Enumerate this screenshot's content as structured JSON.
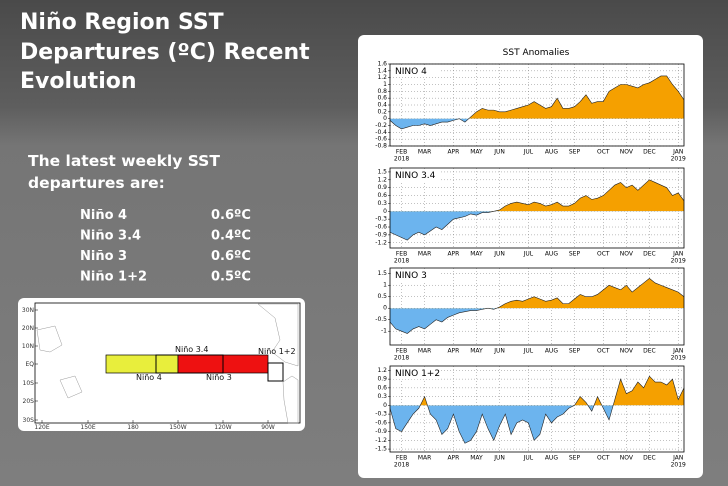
{
  "slide": {
    "title_lines": [
      "Niño Region SST",
      "Departures (ºC) Recent",
      "Evolution"
    ],
    "intro_lines": [
      "The latest weekly SST",
      "departures are:"
    ],
    "rows": [
      [
        "Niño 4",
        "0.6ºC"
      ],
      [
        "Niño 3.4",
        "0.4ºC"
      ],
      [
        "Niño 3",
        "0.6ºC"
      ],
      [
        "Niño 1+2",
        "0.5ºC"
      ]
    ]
  },
  "map": {
    "lat_labels": [
      "30N",
      "20N",
      "10N",
      "EQ",
      "10S",
      "20S",
      "30S"
    ],
    "lon_labels": [
      "120E",
      "150E",
      "180",
      "150W",
      "120W",
      "90W"
    ],
    "regions": [
      "Niño 4",
      "Niño 3.4",
      "Niño 3",
      "Niño 1+2"
    ]
  },
  "anomaly_panel": {
    "title": "SST Anomalies"
  },
  "chart_data": [
    {
      "type": "area",
      "grid": true,
      "positive_color": "#f5a000",
      "negative_color": "#6cb4ee",
      "categories": [
        null,
        null,
        "FEB",
        null,
        null,
        null,
        "MAR",
        null,
        null,
        null,
        null,
        "APR",
        null,
        null,
        null,
        "MAY",
        null,
        null,
        null,
        "JUN",
        null,
        null,
        null,
        null,
        "JUL",
        null,
        null,
        null,
        "AUG",
        null,
        null,
        null,
        "SEP",
        null,
        null,
        null,
        null,
        "OCT",
        null,
        null,
        null,
        "NOV",
        null,
        null,
        null,
        "DEC",
        null,
        null,
        null,
        null,
        "JAN",
        null
      ],
      "category_years": [
        null,
        null,
        "2018",
        null,
        null,
        null,
        null,
        null,
        null,
        null,
        null,
        null,
        null,
        null,
        null,
        null,
        null,
        null,
        null,
        null,
        null,
        null,
        null,
        null,
        null,
        null,
        null,
        null,
        null,
        null,
        null,
        null,
        null,
        null,
        null,
        null,
        null,
        null,
        null,
        null,
        null,
        null,
        null,
        null,
        null,
        null,
        null,
        null,
        null,
        null,
        "2019",
        null
      ],
      "ylim": [
        -0.8,
        1.6
      ],
      "yticks": [
        1.6,
        1.4,
        1.2,
        1,
        0.8,
        0.6,
        0.4,
        0.2,
        0,
        -0.2,
        -0.4,
        -0.6,
        -0.8
      ],
      "series": [
        {
          "name": "NINO 4",
          "values": [
            -0.05,
            -0.2,
            -0.3,
            -0.25,
            -0.2,
            -0.2,
            -0.15,
            -0.2,
            -0.15,
            -0.1,
            -0.1,
            -0.05,
            0.0,
            -0.1,
            0.05,
            0.2,
            0.3,
            0.25,
            0.25,
            0.2,
            0.2,
            0.25,
            0.3,
            0.35,
            0.4,
            0.5,
            0.4,
            0.3,
            0.35,
            0.6,
            0.3,
            0.3,
            0.35,
            0.5,
            0.7,
            0.45,
            0.5,
            0.5,
            0.8,
            0.9,
            1.0,
            1.0,
            0.95,
            0.9,
            1.0,
            1.05,
            1.15,
            1.25,
            1.25,
            1.0,
            0.8,
            0.55
          ]
        }
      ]
    },
    {
      "type": "area",
      "grid": true,
      "positive_color": "#f5a000",
      "negative_color": "#6cb4ee",
      "categories": [
        null,
        null,
        "FEB",
        null,
        null,
        null,
        "MAR",
        null,
        null,
        null,
        null,
        "APR",
        null,
        null,
        null,
        "MAY",
        null,
        null,
        null,
        "JUN",
        null,
        null,
        null,
        null,
        "JUL",
        null,
        null,
        null,
        "AUG",
        null,
        null,
        null,
        "SEP",
        null,
        null,
        null,
        null,
        "OCT",
        null,
        null,
        null,
        "NOV",
        null,
        null,
        null,
        "DEC",
        null,
        null,
        null,
        null,
        "JAN",
        null
      ],
      "category_years": [
        null,
        null,
        "2018",
        null,
        null,
        null,
        null,
        null,
        null,
        null,
        null,
        null,
        null,
        null,
        null,
        null,
        null,
        null,
        null,
        null,
        null,
        null,
        null,
        null,
        null,
        null,
        null,
        null,
        null,
        null,
        null,
        null,
        null,
        null,
        null,
        null,
        null,
        null,
        null,
        null,
        null,
        null,
        null,
        null,
        null,
        null,
        null,
        null,
        null,
        null,
        "2019",
        null
      ],
      "ylim": [
        -1.4,
        1.65
      ],
      "yticks": [
        1.5,
        1.2,
        0.9,
        0.6,
        0.3,
        0,
        -0.3,
        -0.6,
        -0.9,
        -1.2
      ],
      "series": [
        {
          "name": "NINO 3.4",
          "values": [
            -0.8,
            -0.9,
            -1.0,
            -1.1,
            -0.9,
            -0.8,
            -0.9,
            -0.75,
            -0.6,
            -0.7,
            -0.5,
            -0.3,
            -0.25,
            -0.2,
            -0.1,
            -0.15,
            -0.05,
            -0.05,
            0.0,
            0.05,
            0.2,
            0.3,
            0.35,
            0.3,
            0.25,
            0.35,
            0.3,
            0.2,
            0.25,
            0.35,
            0.2,
            0.2,
            0.3,
            0.5,
            0.6,
            0.45,
            0.5,
            0.6,
            0.8,
            1.0,
            1.1,
            0.9,
            1.0,
            0.8,
            1.0,
            1.2,
            1.1,
            1.0,
            0.9,
            0.6,
            0.7,
            0.4
          ]
        }
      ]
    },
    {
      "type": "area",
      "grid": true,
      "positive_color": "#f5a000",
      "negative_color": "#6cb4ee",
      "categories": [
        null,
        null,
        "FEB",
        null,
        null,
        null,
        "MAR",
        null,
        null,
        null,
        null,
        "APR",
        null,
        null,
        null,
        "MAY",
        null,
        null,
        null,
        "JUN",
        null,
        null,
        null,
        null,
        "JUL",
        null,
        null,
        null,
        "AUG",
        null,
        null,
        null,
        "SEP",
        null,
        null,
        null,
        null,
        "OCT",
        null,
        null,
        null,
        "NOV",
        null,
        null,
        null,
        "DEC",
        null,
        null,
        null,
        null,
        "JAN",
        null
      ],
      "category_years": [
        null,
        null,
        "2018",
        null,
        null,
        null,
        null,
        null,
        null,
        null,
        null,
        null,
        null,
        null,
        null,
        null,
        null,
        null,
        null,
        null,
        null,
        null,
        null,
        null,
        null,
        null,
        null,
        null,
        null,
        null,
        null,
        null,
        null,
        null,
        null,
        null,
        null,
        null,
        null,
        null,
        null,
        null,
        null,
        null,
        null,
        null,
        null,
        null,
        null,
        null,
        "2019",
        null
      ],
      "ylim": [
        -1.6,
        1.75
      ],
      "yticks": [
        1.5,
        1,
        0.5,
        0,
        -0.5,
        -1
      ],
      "series": [
        {
          "name": "NINO 3",
          "values": [
            -0.6,
            -0.9,
            -1.0,
            -1.1,
            -0.9,
            -0.8,
            -0.9,
            -0.7,
            -0.5,
            -0.6,
            -0.4,
            -0.3,
            -0.2,
            -0.15,
            -0.1,
            -0.1,
            -0.05,
            0.0,
            -0.05,
            0.05,
            0.2,
            0.3,
            0.35,
            0.3,
            0.4,
            0.5,
            0.4,
            0.3,
            0.35,
            0.45,
            0.2,
            0.2,
            0.4,
            0.6,
            0.5,
            0.5,
            0.6,
            0.8,
            1.0,
            0.9,
            0.8,
            1.0,
            0.7,
            0.9,
            1.1,
            1.3,
            1.1,
            1.0,
            0.9,
            0.8,
            0.7,
            0.5
          ]
        }
      ]
    },
    {
      "type": "area",
      "grid": true,
      "positive_color": "#f5a000",
      "negative_color": "#6cb4ee",
      "categories": [
        null,
        null,
        "FEB",
        null,
        null,
        null,
        "MAR",
        null,
        null,
        null,
        null,
        "APR",
        null,
        null,
        null,
        "MAY",
        null,
        null,
        null,
        "JUN",
        null,
        null,
        null,
        null,
        "JUL",
        null,
        null,
        null,
        "AUG",
        null,
        null,
        null,
        "SEP",
        null,
        null,
        null,
        null,
        "OCT",
        null,
        null,
        null,
        "NOV",
        null,
        null,
        null,
        "DEC",
        null,
        null,
        null,
        null,
        "JAN",
        null
      ],
      "category_years": [
        null,
        null,
        "2018",
        null,
        null,
        null,
        null,
        null,
        null,
        null,
        null,
        null,
        null,
        null,
        null,
        null,
        null,
        null,
        null,
        null,
        null,
        null,
        null,
        null,
        null,
        null,
        null,
        null,
        null,
        null,
        null,
        null,
        null,
        null,
        null,
        null,
        null,
        null,
        null,
        null,
        null,
        null,
        null,
        null,
        null,
        null,
        null,
        null,
        null,
        null,
        "2019",
        null
      ],
      "ylim": [
        -1.6,
        1.35
      ],
      "yticks": [
        1.2,
        0.9,
        0.6,
        0.3,
        0,
        -0.3,
        -0.6,
        -0.9,
        -1.2,
        -1.5
      ],
      "series": [
        {
          "name": "NINO 1+2",
          "values": [
            -0.1,
            -0.8,
            -0.9,
            -0.6,
            -0.3,
            -0.1,
            0.3,
            -0.3,
            -0.5,
            -1.0,
            -0.8,
            -0.3,
            -0.9,
            -1.3,
            -1.2,
            -0.9,
            -0.3,
            -0.8,
            -1.2,
            -0.7,
            -0.3,
            -1.0,
            -0.6,
            -0.5,
            -0.6,
            -1.2,
            -1.0,
            -0.3,
            -0.6,
            -0.4,
            -0.3,
            -0.1,
            0.0,
            0.3,
            0.1,
            -0.2,
            0.3,
            -0.1,
            -0.5,
            0.2,
            0.9,
            0.4,
            0.5,
            0.8,
            0.6,
            1.0,
            0.8,
            0.8,
            0.7,
            0.9,
            0.2,
            0.6
          ]
        }
      ]
    }
  ]
}
